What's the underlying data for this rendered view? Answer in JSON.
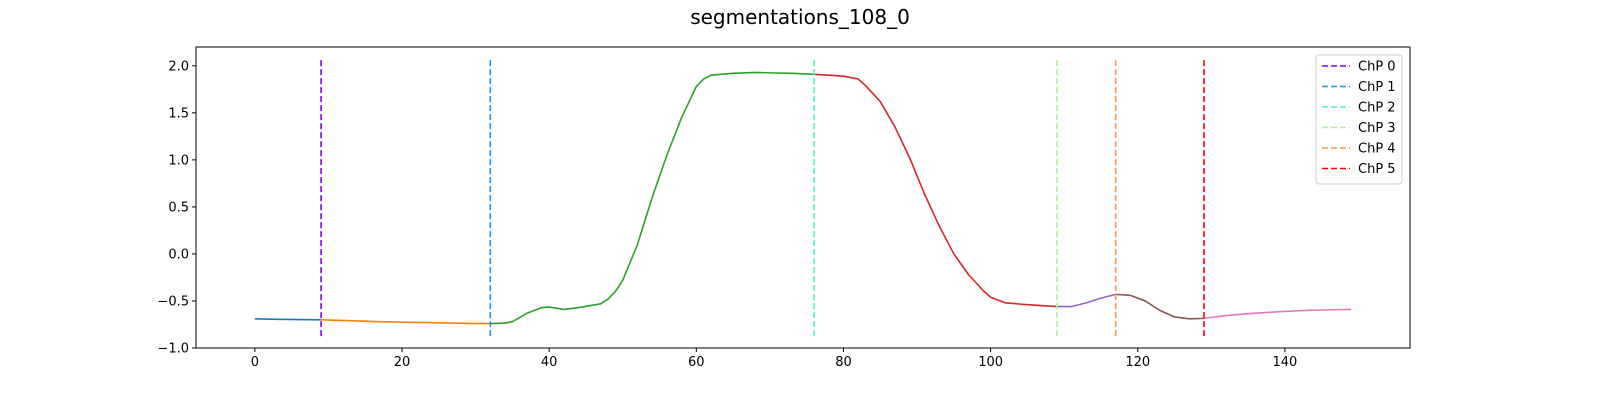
{
  "chart_data": {
    "type": "line",
    "title": "segmentations_108_0",
    "xlabel": "",
    "ylabel": "",
    "xlim": [
      -8,
      157
    ],
    "ylim": [
      -1.0,
      2.2
    ],
    "xticks": [
      0,
      20,
      40,
      60,
      80,
      100,
      120,
      140
    ],
    "yticks": [
      -1.0,
      -0.5,
      0.0,
      0.5,
      1.0,
      1.5,
      2.0
    ],
    "xtick_labels": [
      "0",
      "20",
      "40",
      "60",
      "80",
      "100",
      "120",
      "140"
    ],
    "ytick_labels": [
      "−1.0",
      "−0.5",
      "0.0",
      "0.5",
      "1.0",
      "1.5",
      "2.0"
    ],
    "grid": false,
    "legend_position": "top-right",
    "segments": [
      {
        "color": "#1f77b4",
        "x": [
          0,
          3,
          6,
          9
        ],
        "y": [
          -0.69,
          -0.695,
          -0.698,
          -0.7
        ]
      },
      {
        "color": "#ff7f0e",
        "x": [
          9,
          13,
          17,
          21,
          26,
          30,
          32
        ],
        "y": [
          -0.7,
          -0.71,
          -0.72,
          -0.727,
          -0.733,
          -0.74,
          -0.74
        ]
      },
      {
        "color": "#2ca02c",
        "x": [
          32,
          34,
          35,
          37,
          39,
          40,
          42,
          44,
          47,
          48,
          49,
          50,
          52,
          54,
          56,
          58,
          60,
          61,
          62,
          65,
          68,
          70,
          73,
          76
        ],
        "y": [
          -0.74,
          -0.735,
          -0.72,
          -0.63,
          -0.57,
          -0.565,
          -0.59,
          -0.57,
          -0.53,
          -0.48,
          -0.4,
          -0.28,
          0.1,
          0.6,
          1.05,
          1.45,
          1.78,
          1.86,
          1.9,
          1.92,
          1.93,
          1.925,
          1.92,
          1.91
        ]
      },
      {
        "color": "#d62728",
        "x": [
          76,
          78,
          80,
          82,
          83,
          85,
          87,
          89,
          91,
          93,
          95,
          97,
          99,
          100,
          102,
          105,
          109
        ],
        "y": [
          1.91,
          1.9,
          1.89,
          1.86,
          1.79,
          1.62,
          1.35,
          1.02,
          0.64,
          0.3,
          0.0,
          -0.22,
          -0.39,
          -0.46,
          -0.52,
          -0.54,
          -0.56
        ]
      },
      {
        "color": "#9467bd",
        "x": [
          109,
          111,
          113,
          115,
          117
        ],
        "y": [
          -0.56,
          -0.56,
          -0.52,
          -0.47,
          -0.43
        ]
      },
      {
        "color": "#8c564b",
        "x": [
          117,
          119,
          121,
          123,
          125,
          127,
          129
        ],
        "y": [
          -0.43,
          -0.44,
          -0.5,
          -0.6,
          -0.67,
          -0.69,
          -0.685
        ]
      },
      {
        "color": "#e377c2",
        "x": [
          129,
          132,
          135,
          139,
          143,
          147,
          149
        ],
        "y": [
          -0.685,
          -0.655,
          -0.635,
          -0.615,
          -0.6,
          -0.592,
          -0.59
        ]
      }
    ],
    "changepoints": [
      {
        "name": "ChP 0",
        "x": 9,
        "color": "#7f00ff"
      },
      {
        "name": "ChP 1",
        "x": 32,
        "color": "#1996f3"
      },
      {
        "name": "ChP 2",
        "x": 76,
        "color": "#4df3ce"
      },
      {
        "name": "ChP 3",
        "x": 109,
        "color": "#b2f396"
      },
      {
        "name": "ChP 4",
        "x": 117,
        "color": "#ff964f"
      },
      {
        "name": "ChP 5",
        "x": 129,
        "color": "#ff0000"
      }
    ]
  }
}
